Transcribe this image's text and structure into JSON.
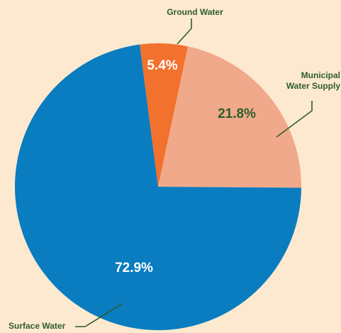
{
  "chart_data": {
    "type": "pie",
    "categories": [
      "Ground Water",
      "Municipal Water Supply",
      "Surface Water"
    ],
    "values": [
      5.4,
      21.8,
      72.9
    ],
    "value_labels": [
      "5.4%",
      "21.8%",
      "72.9%"
    ],
    "colors": [
      "#f2712c",
      "#f0a98a",
      "#0a7cc0"
    ],
    "value_label_colors": [
      "#ffffff",
      "#2e5e2a",
      "#ffffff"
    ]
  }
}
